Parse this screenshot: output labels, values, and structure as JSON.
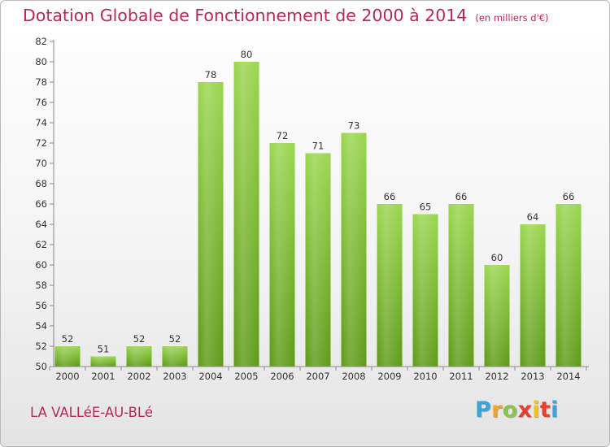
{
  "chart_data": {
    "type": "bar",
    "title": "Dotation Globale de Fonctionnement de 2000 à 2014",
    "unit": "(en milliers d'€)",
    "categories": [
      "2000",
      "2001",
      "2002",
      "2003",
      "2004",
      "2005",
      "2006",
      "2007",
      "2008",
      "2009",
      "2010",
      "2011",
      "2012",
      "2013",
      "2014"
    ],
    "values": [
      52,
      51,
      52,
      52,
      78,
      80,
      72,
      71,
      73,
      66,
      65,
      66,
      60,
      64,
      66
    ],
    "ylim": [
      50,
      82
    ],
    "yticks": [
      50,
      52,
      54,
      56,
      58,
      60,
      62,
      64,
      66,
      68,
      70,
      72,
      74,
      76,
      78,
      80,
      82
    ],
    "xlabel": "",
    "ylabel": "",
    "grid": false,
    "bar_color": "#78b632"
  },
  "commune": "LA VALLéE-AU-BLé",
  "logo": {
    "letters": [
      "P",
      "r",
      "o",
      "x",
      "i",
      "t",
      "i"
    ],
    "colors": [
      "#3aa3dc",
      "#f0a327",
      "#8bc34a",
      "#e2412f",
      "#f0c419",
      "#e2412f",
      "#3aa3dc"
    ]
  }
}
